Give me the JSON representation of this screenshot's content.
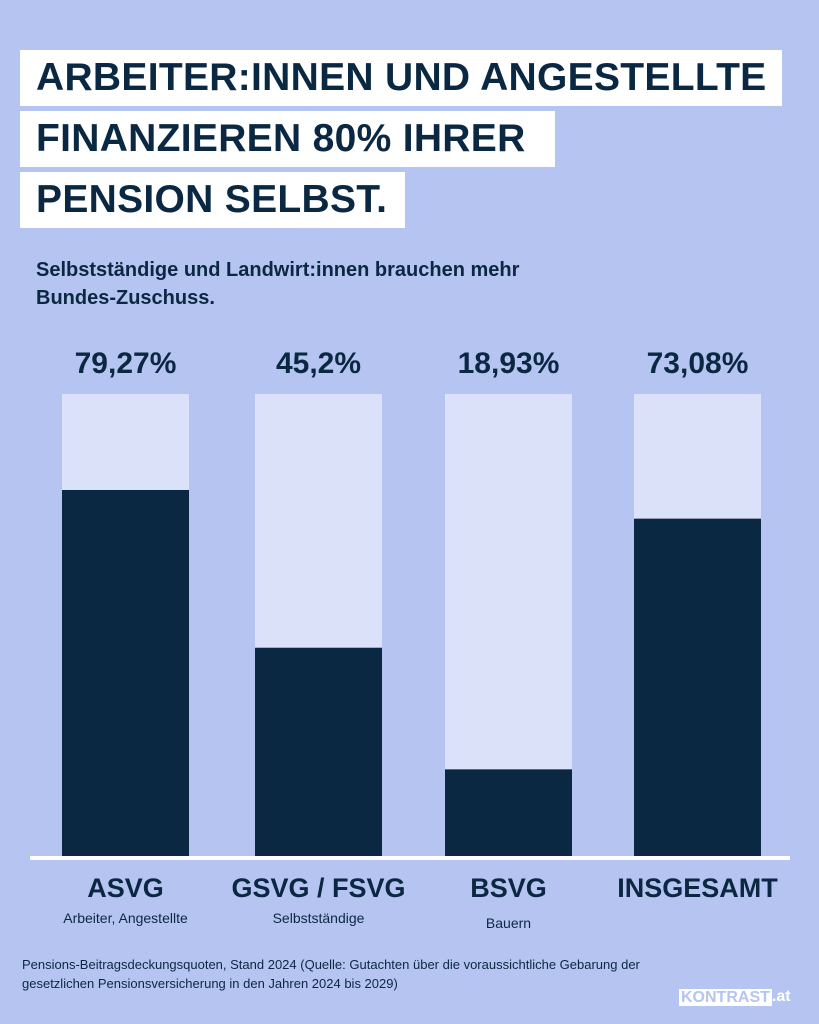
{
  "title_lines": [
    "ARBEITER:INNEN UND ANGESTELLTE",
    "FINANZIEREN 80% IHRER",
    "PENSION SELBST."
  ],
  "subtitle": "Selbstständige und Landwirt:innen brauchen mehr Bundes-Zuschuss.",
  "chart_data": {
    "type": "bar",
    "stacked_to": 100,
    "categories": [
      "ASVG",
      "GSVG / FSVG",
      "BSVG",
      "INSGESAMT"
    ],
    "category_sublabels": [
      "Arbeiter, Angestellte",
      "Selbstständige",
      "Bauern",
      ""
    ],
    "values": [
      79.27,
      45.2,
      18.93,
      73.08
    ],
    "value_labels": [
      "79,27%",
      "45,2%",
      "18,93%",
      "73,08%"
    ],
    "ylim": [
      0,
      100
    ],
    "grid": false,
    "colors": {
      "value": "#0b2842",
      "remainder": "#dce1fa",
      "axis": "#ffffff"
    }
  },
  "footnote": "Pensions-Beitragsdeckungsquoten, Stand 2024 (Quelle: Gutachten über die voraussichtliche Gebarung der gesetzlichen Pensionsversicherung in den Jahren 2024 bis 2029)",
  "logo": {
    "main": "KONTRAST",
    "suffix": ".at"
  }
}
